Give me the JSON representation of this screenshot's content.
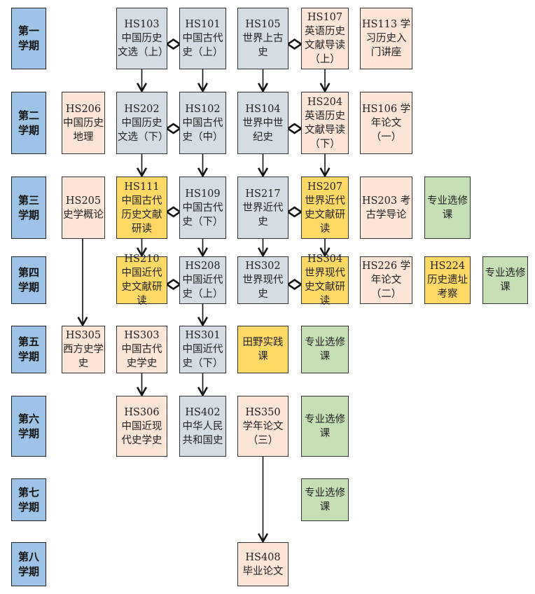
{
  "colors": {
    "semester": "#9dc3e6",
    "gray": "#d6dce4",
    "peach": "#fbe5d6",
    "yellow": "#ffd966",
    "green": "#c5e0b4"
  },
  "semesters": [
    "第一学期",
    "第二学期",
    "第三学期",
    "第四学期",
    "第五学期",
    "第六学期",
    "第七学期",
    "第八学期"
  ],
  "courses": [
    {
      "label": "HS103 中国历史文选（上）",
      "color": "gray"
    },
    {
      "label": "HS101 中国古代史（上）",
      "color": "gray"
    },
    {
      "label": "HS105 世界上古史",
      "color": "gray"
    },
    {
      "label": "HS107 英语历史文献导读（上）",
      "color": "peach"
    },
    {
      "label": "HS113 学习历史入门讲座",
      "color": "peach"
    },
    {
      "label": "HS206 中国历史地理",
      "color": "peach"
    },
    {
      "label": "HS202 中国历史文选（下）",
      "color": "gray"
    },
    {
      "label": "HS102 中国古代史（中）",
      "color": "gray"
    },
    {
      "label": "HS104 世界中世纪史",
      "color": "gray"
    },
    {
      "label": "HS204 英语历史文献导读（下）",
      "color": "peach"
    },
    {
      "label": "HS106 学年论文（一）",
      "color": "peach"
    },
    {
      "label": "HS205 史学概论",
      "color": "peach"
    },
    {
      "label": "HS111 中国古代历史文献研读",
      "color": "yellow"
    },
    {
      "label": "HS109 中国古代史（下）",
      "color": "gray"
    },
    {
      "label": "HS217 世界近代史",
      "color": "gray"
    },
    {
      "label": "HS207 世界近代史文献研读",
      "color": "yellow"
    },
    {
      "label": "HS203 考古学导论",
      "color": "peach"
    },
    {
      "label": "专业选修课",
      "color": "green"
    },
    {
      "label": "HS210 中国近代史文献研读",
      "color": "yellow"
    },
    {
      "label": "HS208 中国近代史（上）",
      "color": "gray"
    },
    {
      "label": "HS302 世界现代史",
      "color": "gray"
    },
    {
      "label": "HS304 世界现代史文献研读",
      "color": "yellow"
    },
    {
      "label": "HS226 学年论文（二）",
      "color": "peach"
    },
    {
      "label": "HS224 历史遗址考察",
      "color": "yellow"
    },
    {
      "label": "专业选修课",
      "color": "green"
    },
    {
      "label": "HS305 西方史学史",
      "color": "peach"
    },
    {
      "label": "HS303 中国古代史学史",
      "color": "peach"
    },
    {
      "label": "HS301 中国近代史（下）",
      "color": "gray"
    },
    {
      "label": "田野实践课",
      "color": "yellow"
    },
    {
      "label": "专业选修课",
      "color": "green"
    },
    {
      "label": "HS306 中国近现代史学史",
      "color": "peach"
    },
    {
      "label": "HS402 中华人民共和国史",
      "color": "gray"
    },
    {
      "label": "HS350 学年论文（三）",
      "color": "peach"
    },
    {
      "label": "专业选修课",
      "color": "green"
    },
    {
      "label": "专业选修课",
      "color": "green"
    },
    {
      "label": "HS408 毕业论文",
      "color": "peach"
    }
  ]
}
